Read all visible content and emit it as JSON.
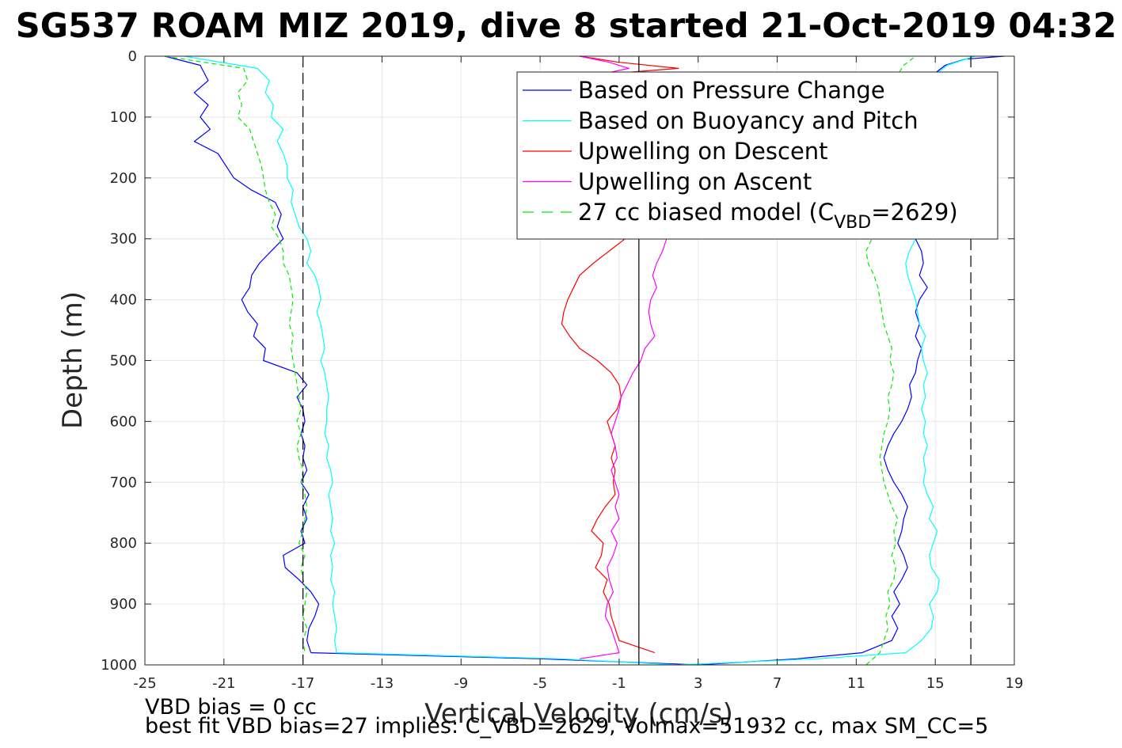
{
  "chart_data": {
    "type": "line",
    "title": "SG537 ROAM MIZ 2019, dive 8 started 21-Oct-2019 04:32",
    "xlabel": "Vertical Velocity (cm/s)",
    "ylabel": "Depth (m)",
    "xlim": [
      -25,
      19
    ],
    "ylim": [
      0,
      1000
    ],
    "y_reversed": true,
    "grid": true,
    "xticks": [
      -25,
      -21,
      -17,
      -13,
      -9,
      -5,
      -1,
      3,
      7,
      11,
      15,
      19
    ],
    "yticks": [
      0,
      100,
      200,
      300,
      400,
      500,
      600,
      700,
      800,
      900,
      1000
    ],
    "legend_position": "top-right",
    "legend": [
      {
        "label": "Based on Pressure Change",
        "color": "#0000ff",
        "dash": "solid"
      },
      {
        "label": "Based on Buoyancy and Pitch",
        "color": "#00ffff",
        "dash": "solid"
      },
      {
        "label": "Upwelling on Descent",
        "color": "#ff0000",
        "dash": "solid"
      },
      {
        "label": "Upwelling on Ascent",
        "color": "#ff00ff",
        "dash": "solid"
      },
      {
        "label_main": "27 cc biased model (C",
        "label_sub": "VBD",
        "label_tail": "=2629)",
        "color": "#00ee00",
        "dash": "dashed"
      }
    ],
    "reference_lines": [
      {
        "x": -17,
        "style": "dashed",
        "color": "#000000"
      },
      {
        "x": 16.8,
        "style": "dashed",
        "color": "#000000"
      },
      {
        "x": 0,
        "style": "solid",
        "color": "#000000"
      }
    ],
    "series": [
      {
        "name": "Based on Pressure Change",
        "color": "#0000ff",
        "segments": [
          {
            "depth": [
              0,
              15,
              40,
              60,
              80,
              100,
              120,
              140,
              160,
              180,
              200,
              220,
              240,
              260,
              280,
              300,
              320,
              340,
              360,
              380,
              400,
              420,
              440,
              460,
              480,
              500,
              520,
              540,
              560,
              580,
              600,
              620,
              640,
              660,
              680,
              700,
              720,
              740,
              760,
              780,
              800,
              820,
              840,
              860,
              880,
              900,
              920,
              940,
              960,
              980
            ],
            "x": [
              -24,
              -22.2,
              -21.8,
              -22.5,
              -21.8,
              -22.2,
              -21.7,
              -22.5,
              -21.3,
              -20.9,
              -20.5,
              -19.6,
              -18.4,
              -18.1,
              -18.3,
              -18.0,
              -18.6,
              -19.2,
              -19.6,
              -19.7,
              -20.1,
              -19.8,
              -19.3,
              -19.5,
              -18.9,
              -19.0,
              -17.3,
              -16.8,
              -17.3,
              -17.0,
              -16.9,
              -17.1,
              -16.9,
              -17.0,
              -16.8,
              -17.1,
              -16.7,
              -17.0,
              -16.8,
              -17.1,
              -16.9,
              -18.0,
              -17.9,
              -17.2,
              -16.6,
              -16.2,
              -16.4,
              -16.7,
              -16.8,
              -16.6
            ]
          },
          {
            "depth": [
              980,
              990,
              1000
            ],
            "x": [
              -16.6,
              -5,
              3
            ]
          },
          {
            "depth": [
              1000,
              990,
              980,
              960,
              940,
              920,
              900,
              880,
              860,
              840,
              820,
              800,
              780,
              760,
              740,
              720,
              700,
              680,
              660,
              640,
              620,
              600,
              580,
              560,
              540,
              520,
              500,
              480,
              460,
              440,
              420,
              400,
              380,
              360,
              340,
              320,
              300
            ],
            "x": [
              3,
              8,
              11.3,
              12.8,
              13.1,
              12.8,
              13.2,
              12.9,
              13.3,
              13.6,
              13.4,
              13.1,
              13.3,
              13.4,
              13.6,
              13.3,
              12.9,
              12.6,
              12.4,
              12.6,
              12.9,
              13.3,
              13.6,
              13.8,
              13.7,
              14.0,
              14.1,
              14.3,
              14.0,
              14.2,
              14.0,
              14.2,
              14.6,
              14.2,
              14.4,
              14.3,
              14.0
            ]
          },
          {
            "depth": [
              100,
              60,
              30,
              15,
              5,
              0
            ],
            "x": [
              14.3,
              14.5,
              14.9,
              15.5,
              16.5,
              18.5
            ]
          }
        ]
      },
      {
        "name": "Based on Buoyancy and Pitch",
        "color": "#00ffff",
        "segments": [
          {
            "depth": [
              0,
              20,
              40,
              60,
              80,
              100,
              120,
              140,
              160,
              180,
              200,
              220,
              240,
              260,
              280,
              300,
              320,
              340,
              360,
              380,
              400,
              420,
              440,
              460,
              480,
              500,
              520,
              540,
              560,
              580,
              600,
              620,
              640,
              660,
              680,
              700,
              720,
              740,
              760,
              780,
              800,
              820,
              840,
              860,
              880,
              900,
              920,
              940,
              960,
              980
            ],
            "x": [
              -23,
              -19.3,
              -18.7,
              -18.9,
              -18.5,
              -18.6,
              -18.0,
              -18.3,
              -18.0,
              -17.8,
              -17.8,
              -17.5,
              -17.6,
              -17.4,
              -17.2,
              -16.8,
              -16.6,
              -16.8,
              -16.4,
              -16.2,
              -16.1,
              -16.3,
              -16.1,
              -16.0,
              -15.9,
              -16.1,
              -15.9,
              -15.8,
              -15.7,
              -15.8,
              -15.8,
              -15.9,
              -15.7,
              -15.8,
              -15.6,
              -15.5,
              -15.7,
              -15.6,
              -15.5,
              -15.6,
              -15.4,
              -15.6,
              -15.5,
              -15.6,
              -15.4,
              -15.5,
              -15.4,
              -15.3,
              -15.4,
              -15.3
            ]
          },
          {
            "depth": [
              980,
              990,
              1000
            ],
            "x": [
              -15.3,
              -4,
              2
            ]
          },
          {
            "depth": [
              1000,
              990,
              980,
              960,
              940,
              920,
              900,
              880,
              860,
              840,
              820,
              800,
              780,
              760,
              740,
              720,
              700,
              680,
              660,
              640,
              620,
              600,
              580,
              560,
              540,
              520,
              500,
              480,
              460,
              440,
              420,
              400,
              380,
              360,
              340,
              320,
              300
            ],
            "x": [
              2,
              9,
              13.5,
              14.3,
              14.8,
              14.9,
              14.7,
              15.1,
              15.2,
              14.8,
              14.7,
              14.9,
              15.1,
              14.7,
              14.9,
              14.6,
              14.4,
              14.5,
              14.4,
              14.6,
              14.4,
              14.5,
              14.3,
              14.5,
              14.4,
              14.6,
              14.4,
              14.3,
              14.5,
              14.2,
              14.1,
              14.0,
              13.8,
              13.6,
              13.5,
              13.7,
              14.0
            ]
          },
          {
            "depth": [
              100,
              60,
              30,
              15,
              0
            ],
            "x": [
              14.6,
              14.8,
              15.0,
              15.6,
              17.0
            ]
          }
        ]
      },
      {
        "name": "Upwelling on Descent",
        "color": "#ff0000",
        "segments": [
          {
            "depth": [
              0,
              10,
              20,
              30
            ],
            "x": [
              -3,
              -1,
              2,
              -2
            ]
          },
          {
            "depth": [
              300,
              320,
              340,
              360,
              380,
              400,
              420,
              440,
              460,
              480,
              500,
              520,
              540,
              560,
              580,
              600,
              620,
              640,
              660,
              680,
              700,
              720,
              740,
              760,
              780,
              800,
              820,
              840,
              860,
              880,
              900,
              920,
              940,
              960,
              980
            ],
            "x": [
              -0.7,
              -1.5,
              -2.3,
              -3.0,
              -3.3,
              -3.6,
              -3.8,
              -3.9,
              -3.5,
              -3.0,
              -2.1,
              -1.4,
              -1.0,
              -0.9,
              -1.1,
              -1.6,
              -1.4,
              -1.2,
              -1.4,
              -1.2,
              -1.3,
              -1.2,
              -1.7,
              -2.1,
              -2.4,
              -1.8,
              -1.9,
              -2.2,
              -1.6,
              -1.8,
              -1.5,
              -1.4,
              -1.2,
              -1.0,
              0.8
            ]
          }
        ]
      },
      {
        "name": "Upwelling on Ascent",
        "color": "#ff00ff",
        "segments": [
          {
            "depth": [
              0,
              10,
              20,
              30,
              40
            ],
            "x": [
              -3,
              -1.5,
              -0.5,
              -2,
              -1
            ]
          },
          {
            "depth": [
              300,
              320,
              340,
              360,
              380,
              400,
              420,
              440,
              460,
              480,
              500,
              520,
              540,
              560,
              580,
              600,
              620,
              640,
              660,
              680,
              700,
              720,
              740,
              760,
              780,
              800,
              820,
              840,
              860,
              880,
              900,
              920,
              940,
              960,
              980,
              990
            ],
            "x": [
              1.4,
              1.2,
              0.9,
              0.7,
              0.9,
              0.6,
              0.5,
              0.6,
              0.8,
              0.3,
              0.1,
              -0.3,
              -0.6,
              -0.9,
              -1.0,
              -1.2,
              -1.4,
              -1.2,
              -1.1,
              -1.4,
              -1.2,
              -1.0,
              -1.2,
              -1.0,
              -1.4,
              -1.1,
              -1.3,
              -1.6,
              -1.5,
              -1.3,
              -1.6,
              -1.7,
              -1.4,
              -1.2,
              -1.0,
              -3
            ]
          }
        ]
      },
      {
        "name": "27 cc biased model (C_VBD=2629)",
        "color": "#00ee00",
        "dash": "dashed",
        "segments": [
          {
            "depth": [
              0,
              20,
              40,
              60,
              80,
              100,
              120,
              140,
              160,
              180,
              200,
              220,
              240,
              260,
              280,
              300,
              320,
              340,
              360,
              380,
              400,
              420,
              440,
              460,
              480,
              500,
              520,
              540,
              560,
              580,
              600,
              620,
              640,
              660,
              680,
              700,
              720,
              740,
              760,
              780,
              800,
              820,
              840,
              860,
              880,
              900,
              920,
              940,
              960,
              980
            ],
            "x": [
              -24,
              -20.0,
              -19.8,
              -20.3,
              -20.1,
              -20.3,
              -19.7,
              -19.5,
              -19.3,
              -19.1,
              -19.0,
              -18.9,
              -18.7,
              -18.4,
              -18.6,
              -18.2,
              -18.0,
              -18.0,
              -17.7,
              -17.6,
              -17.5,
              -17.6,
              -17.7,
              -17.5,
              -17.6,
              -17.5,
              -17.4,
              -17.3,
              -17.2,
              -17.1,
              -17.3,
              -17.1,
              -17.3,
              -17.2,
              -17.0,
              -17.1,
              -16.9,
              -16.8,
              -16.9,
              -17.0,
              -17.2,
              -16.9,
              -17.1,
              -17.0,
              -16.8,
              -16.9,
              -17.0,
              -16.8,
              -17.0,
              -16.9
            ]
          },
          {
            "depth": [
              1000,
              980,
              960,
              940,
              920,
              900,
              880,
              860,
              840,
              820,
              800,
              780,
              760,
              740,
              720,
              700,
              680,
              660,
              640,
              620,
              600,
              580,
              560,
              540,
              520,
              500,
              480,
              460,
              440,
              420,
              400,
              380,
              360,
              340,
              320,
              300
            ],
            "x": [
              11.5,
              12.2,
              12.4,
              12.6,
              12.5,
              12.7,
              12.6,
              12.9,
              13.0,
              12.8,
              13.0,
              12.9,
              13.1,
              12.8,
              12.6,
              12.4,
              12.3,
              12.2,
              12.3,
              12.4,
              12.6,
              12.7,
              12.6,
              12.8,
              12.9,
              12.7,
              12.8,
              12.6,
              12.4,
              12.3,
              12.2,
              12.1,
              11.9,
              11.6,
              11.5,
              11.8
            ]
          },
          {
            "depth": [
              100,
              60,
              30,
              15,
              0
            ],
            "x": [
              12.4,
              12.8,
              13.1,
              13.4,
              14
            ]
          }
        ]
      }
    ]
  },
  "footer": {
    "line1": "VBD bias = 0 cc",
    "line2": "best fit VBD bias=27 implies: C_VBD=2629, Volmax=51932 cc, max SM_CC=5"
  }
}
